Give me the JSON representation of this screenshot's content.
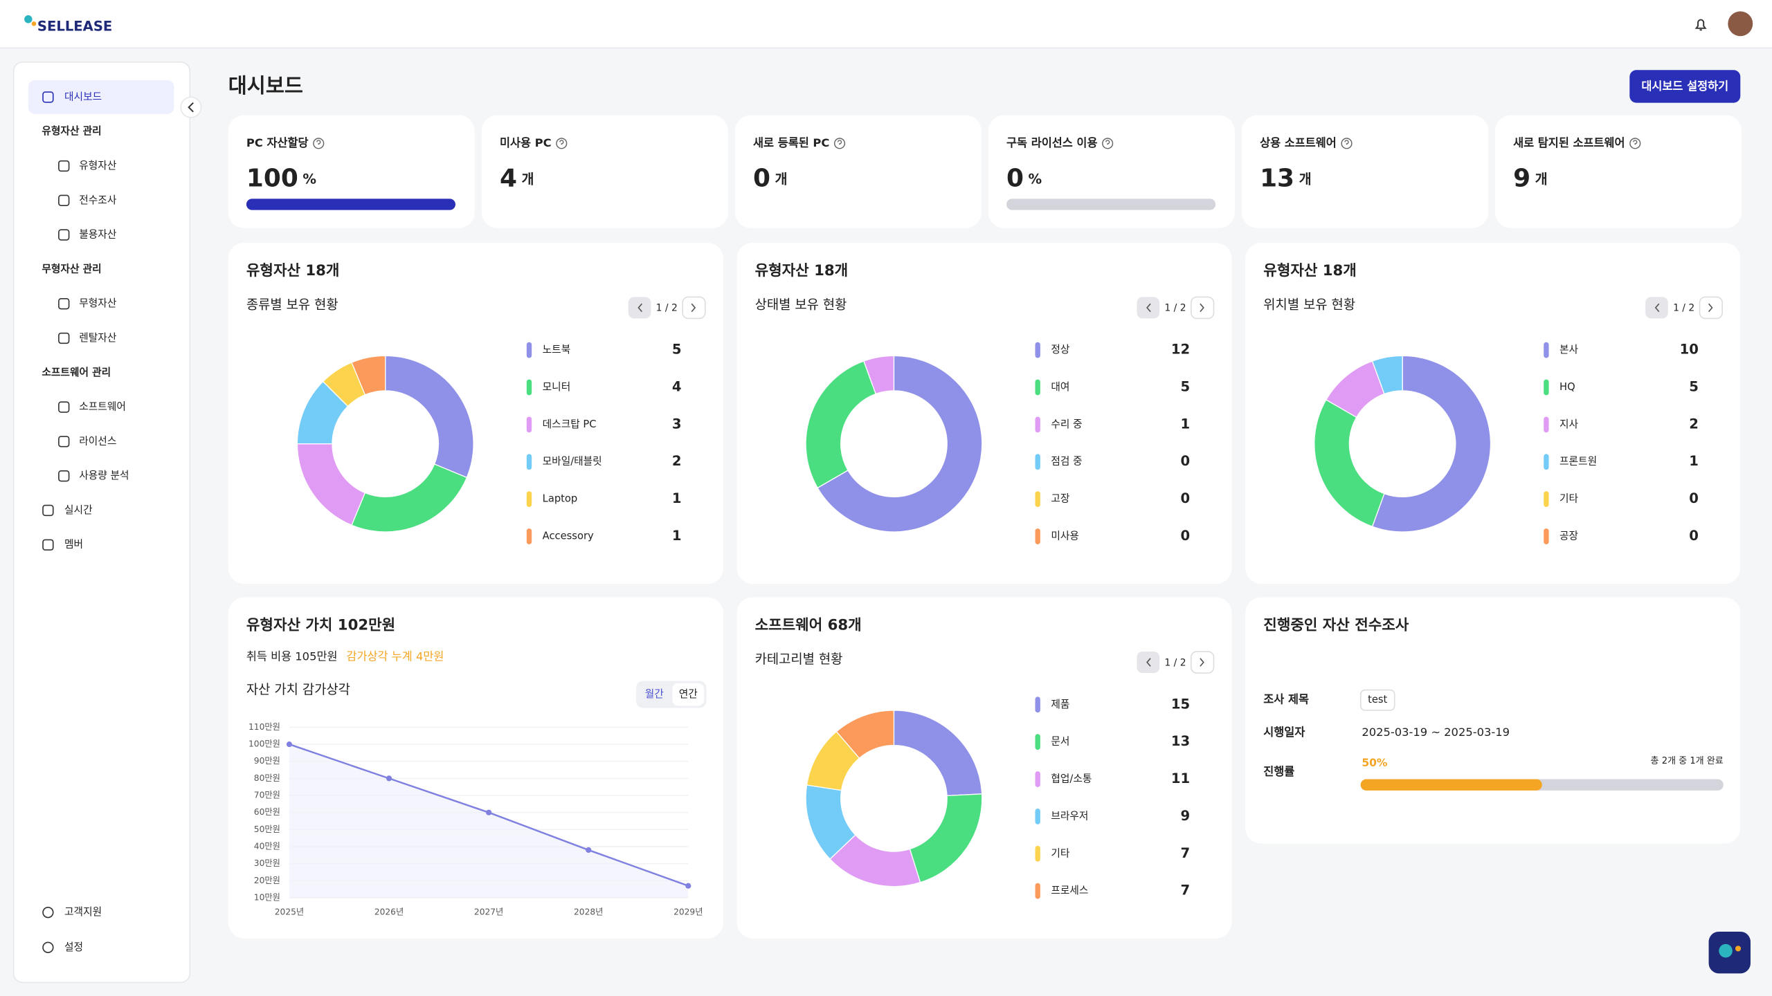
{
  "header": {
    "logo": "SELLEASE"
  },
  "sidebar": {
    "groups": [
      {
        "label": "대시보드"
      },
      {
        "label": "유형자산 관리",
        "children": [
          "유형자산",
          "전수조사",
          "불용자산"
        ]
      },
      {
        "label": "무형자산 관리",
        "children": [
          "무형자산",
          "렌탈자산"
        ]
      },
      {
        "label": "소프트웨어 관리",
        "children": [
          "소프트웨어",
          "라이선스",
          "사용량 분석"
        ]
      },
      {
        "label": "실시간"
      },
      {
        "label": "멤버"
      }
    ],
    "bottom": [
      "고객지원",
      "설정"
    ]
  },
  "page": {
    "title": "대시보드",
    "button": "대시보드 설정하기"
  },
  "kpis": [
    {
      "label": "PC 자산할당",
      "value": 100,
      "unit": "%",
      "progress": true
    },
    {
      "label": "미사용 PC",
      "value": 4,
      "unit": "개"
    },
    {
      "label": "새로 등록된 PC",
      "value": 0,
      "unit": "개"
    },
    {
      "label": "구독 라이선스 이용",
      "value": 0,
      "unit": "%",
      "progress": true
    },
    {
      "label": "상용 소프트웨어",
      "value": 13,
      "unit": "개"
    },
    {
      "label": "새로 탐지된 소프트웨어",
      "value": 9,
      "unit": "개"
    }
  ],
  "asset_cards": [
    {
      "title": "유형자산 18개",
      "subtitle": "종류별 보유 현황",
      "pager": "1 / 2",
      "items": [
        {
          "label": "노트북",
          "value": 5,
          "color": "#8f90e8"
        },
        {
          "label": "모니터",
          "value": 4,
          "color": "#4ade80"
        },
        {
          "label": "데스크탑 PC",
          "value": 3,
          "color": "#e09cf4"
        },
        {
          "label": "모바일/태블릿",
          "value": 2,
          "color": "#73cbf8"
        },
        {
          "label": "Laptop",
          "value": 1,
          "color": "#fcd34d"
        },
        {
          "label": "Accessory",
          "value": 1,
          "color": "#fb9a5a"
        }
      ]
    },
    {
      "title": "유형자산 18개",
      "subtitle": "상태별 보유 현황",
      "pager": "1 / 2",
      "items": [
        {
          "label": "정상",
          "value": 12,
          "color": "#8f90e8"
        },
        {
          "label": "대여",
          "value": 5,
          "color": "#4ade80"
        },
        {
          "label": "수리 중",
          "value": 1,
          "color": "#e09cf4"
        },
        {
          "label": "점검 중",
          "value": 0,
          "color": "#73cbf8"
        },
        {
          "label": "고장",
          "value": 0,
          "color": "#fcd34d"
        },
        {
          "label": "미사용",
          "value": 0,
          "color": "#fb9a5a"
        }
      ]
    },
    {
      "title": "유형자산 18개",
      "subtitle": "위치별 보유 현황",
      "pager": "1 / 2",
      "items": [
        {
          "label": "본사",
          "value": 10,
          "color": "#8f90e8"
        },
        {
          "label": "HQ",
          "value": 5,
          "color": "#4ade80"
        },
        {
          "label": "지사",
          "value": 2,
          "color": "#e09cf4"
        },
        {
          "label": "프론트원",
          "value": 1,
          "color": "#73cbf8"
        },
        {
          "label": "기타",
          "value": 0,
          "color": "#fcd34d"
        },
        {
          "label": "공장",
          "value": 0,
          "color": "#fb9a5a"
        }
      ]
    }
  ],
  "value_card": {
    "title": "유형자산 가치 102만원",
    "acquisition": "취득 비용 105만원",
    "depreciation": "감가상각 누계 4만원",
    "chart_title": "자산 가치 감가상각",
    "toggle": [
      "월간",
      "연간"
    ],
    "chart": {
      "type": "line",
      "x": [
        "2025년",
        "2026년",
        "2027년",
        "2028년",
        "2029년"
      ],
      "values": [
        100,
        80,
        60,
        38,
        17
      ],
      "color": "#7f80e0",
      "ylim": [
        10,
        110
      ],
      "yticks": [
        {
          "value": 10,
          "label": "10만원"
        },
        {
          "value": 20,
          "label": "20만원"
        },
        {
          "value": 30,
          "label": "30만원"
        },
        {
          "value": 40,
          "label": "40만원"
        },
        {
          "value": 50,
          "label": "50만원"
        },
        {
          "value": 60,
          "label": "60만원"
        },
        {
          "value": 70,
          "label": "70만원"
        },
        {
          "value": 80,
          "label": "80만원"
        },
        {
          "value": 90,
          "label": "90만원"
        },
        {
          "value": 100,
          "label": "100만원"
        },
        {
          "value": 110,
          "label": "110만원"
        }
      ]
    }
  },
  "software_card": {
    "title": "소프트웨어 68개",
    "subtitle": "카테고리별 현황",
    "pager": "1 / 2",
    "items": [
      {
        "label": "제품",
        "value": 15,
        "color": "#8f90e8"
      },
      {
        "label": "문서",
        "value": 13,
        "color": "#4ade80"
      },
      {
        "label": "협업/소통",
        "value": 11,
        "color": "#e09cf4"
      },
      {
        "label": "브라우저",
        "value": 9,
        "color": "#73cbf8"
      },
      {
        "label": "기타",
        "value": 7,
        "color": "#fcd34d"
      },
      {
        "label": "프로세스",
        "value": 7,
        "color": "#fb9a5a"
      }
    ]
  },
  "survey_card": {
    "title": "진행중인 자산 전수조사",
    "rows": [
      {
        "label": "조사 제목",
        "value": "test"
      },
      {
        "label": "시행일자",
        "value": "2025-03-19 ~ 2025-03-19"
      }
    ],
    "progress": {
      "label": "진행률",
      "value": 50,
      "value_label": "50%",
      "note": "총 2개 중 1개 완료"
    }
  }
}
